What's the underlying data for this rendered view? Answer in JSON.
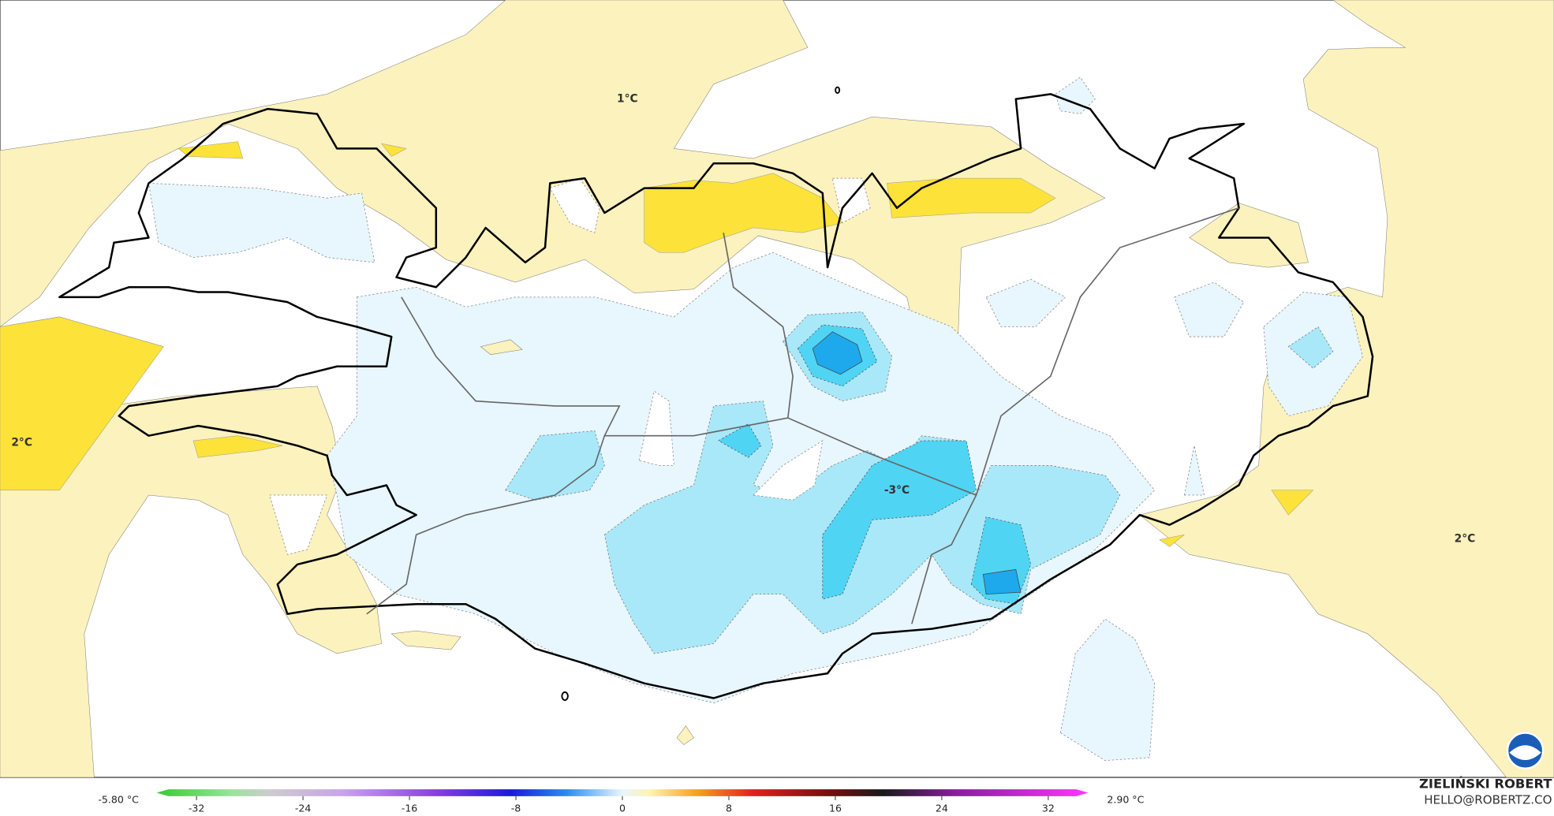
{
  "map": {
    "contour_labels": [
      "1°C",
      "2°C",
      "-3°C",
      "2°C"
    ]
  },
  "colorbar": {
    "min_label": "-5.80 °C",
    "max_label": "2.90 °C",
    "ticks": [
      -32,
      -24,
      -16,
      -8,
      0,
      8,
      16,
      24,
      32
    ],
    "lim": [
      -35,
      35
    ]
  },
  "credit": {
    "name": "ZIELIŃSKI ROBERT",
    "email": "HELLO@ROBERTZ.CO"
  }
}
